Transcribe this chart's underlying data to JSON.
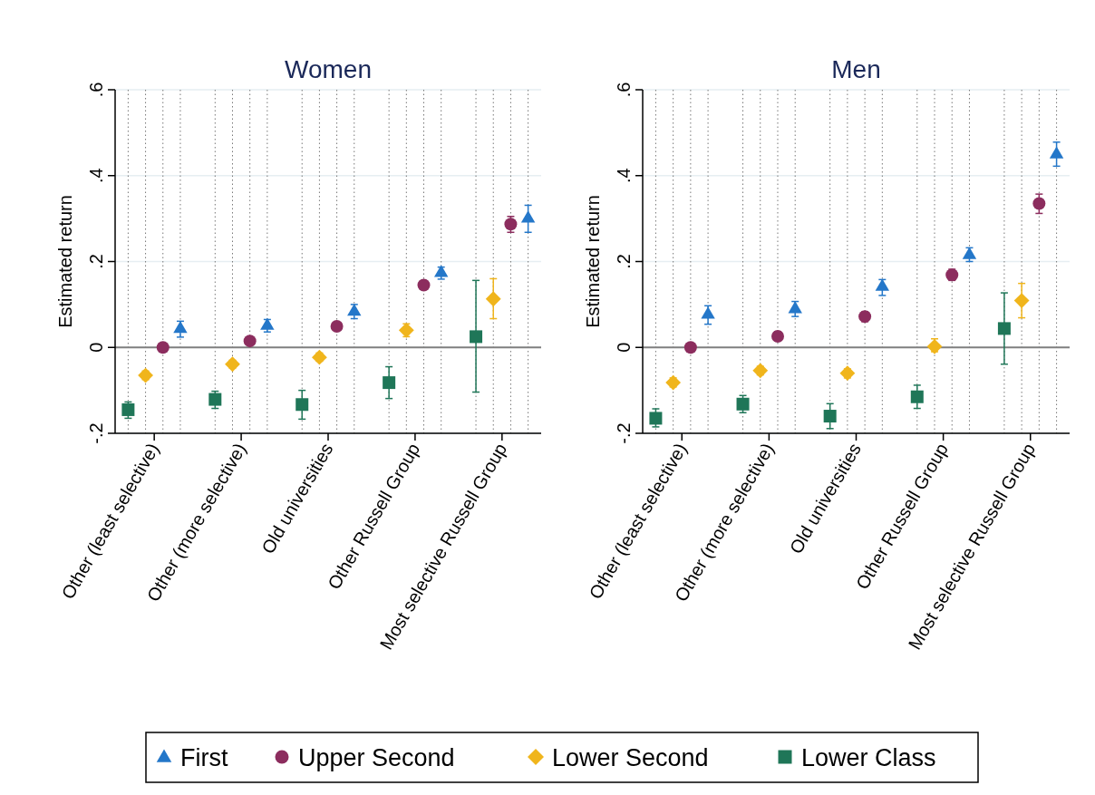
{
  "chart_data": [
    {
      "type": "scatter",
      "title": "Women",
      "ylabel": "Estimated return",
      "categories": [
        "Other (least selective)",
        "Other (more selective)",
        "Old universities",
        "Other Russell Group",
        "Most selective Russell Group"
      ],
      "ylim": [
        -0.2,
        0.6
      ],
      "yticks": [
        {
          "value": -0.2,
          "label": "-.2"
        },
        {
          "value": 0,
          "label": "0"
        },
        {
          "value": 0.2,
          "label": ".2"
        },
        {
          "value": 0.4,
          "label": ".4"
        },
        {
          "value": 0.6,
          "label": ".6"
        }
      ],
      "grid": true,
      "legend": "bottom",
      "ref_lines": [
        {
          "axis": "y",
          "value": 0,
          "color": "#808080"
        }
      ],
      "series": [
        {
          "name": "First",
          "color": "#2477c9",
          "marker": "triangle",
          "values": [
            0.045,
            0.052,
            0.085,
            0.175,
            0.302
          ],
          "errors": [
            [
              0.024,
              0.061
            ],
            [
              0.036,
              0.065
            ],
            [
              0.067,
              0.1
            ],
            [
              0.159,
              0.187
            ],
            [
              0.268,
              0.331
            ]
          ]
        },
        {
          "name": "Upper Second",
          "color": "#8c2d5e",
          "marker": "circle",
          "values": [
            0,
            0.015,
            0.049,
            0.145,
            0.287
          ],
          "errors": [
            null,
            null,
            null,
            null,
            [
              0.268,
              0.305
            ]
          ]
        },
        {
          "name": "Lower Second",
          "color": "#f0b51c",
          "marker": "diamond",
          "values": [
            -0.065,
            -0.039,
            -0.023,
            0.04,
            0.113
          ],
          "errors": [
            [
              -0.075,
              -0.055
            ],
            [
              -0.048,
              -0.03
            ],
            [
              -0.032,
              -0.013
            ],
            [
              0.025,
              0.055
            ],
            [
              0.067,
              0.16
            ]
          ]
        },
        {
          "name": "Lower Class",
          "color": "#1f7658",
          "marker": "square",
          "values": [
            -0.145,
            -0.121,
            -0.133,
            -0.082,
            0.025
          ],
          "errors": [
            [
              -0.165,
              -0.127
            ],
            [
              -0.142,
              -0.102
            ],
            [
              -0.167,
              -0.1
            ],
            [
              -0.119,
              -0.045
            ],
            [
              -0.104,
              0.156
            ]
          ]
        }
      ]
    },
    {
      "type": "scatter",
      "title": "Men",
      "ylabel": "Estimated return",
      "categories": [
        "Other (least selective)",
        "Other (more selective)",
        "Old universities",
        "Other Russell Group",
        "Most selective Russell Group"
      ],
      "ylim": [
        -0.2,
        0.6
      ],
      "yticks": [
        {
          "value": -0.2,
          "label": "-.2"
        },
        {
          "value": 0,
          "label": "0"
        },
        {
          "value": 0.2,
          "label": ".2"
        },
        {
          "value": 0.4,
          "label": ".4"
        },
        {
          "value": 0.6,
          "label": ".6"
        }
      ],
      "grid": true,
      "ref_lines": [
        {
          "axis": "y",
          "value": 0,
          "color": "#808080"
        }
      ],
      "series": [
        {
          "name": "First",
          "color": "#2477c9",
          "marker": "triangle",
          "values": [
            0.078,
            0.091,
            0.143,
            0.217,
            0.451
          ],
          "errors": [
            [
              0.054,
              0.097
            ],
            [
              0.072,
              0.107
            ],
            [
              0.121,
              0.158
            ],
            [
              0.2,
              0.232
            ],
            [
              0.422,
              0.478
            ]
          ]
        },
        {
          "name": "Upper Second",
          "color": "#8c2d5e",
          "marker": "circle",
          "values": [
            0,
            0.026,
            0.072,
            0.169,
            0.335
          ],
          "errors": [
            null,
            [
              0.016,
              0.037
            ],
            [
              0.06,
              0.083
            ],
            [
              0.156,
              0.182
            ],
            [
              0.312,
              0.357
            ]
          ]
        },
        {
          "name": "Lower Second",
          "color": "#f0b51c",
          "marker": "diamond",
          "values": [
            -0.082,
            -0.054,
            -0.06,
            0.002,
            0.109
          ],
          "errors": [
            [
              -0.092,
              -0.071
            ],
            [
              -0.064,
              -0.044
            ],
            [
              -0.071,
              -0.05
            ],
            [
              -0.01,
              0.02
            ],
            [
              0.069,
              0.149
            ]
          ]
        },
        {
          "name": "Lower Class",
          "color": "#1f7658",
          "marker": "square",
          "values": [
            -0.165,
            -0.132,
            -0.16,
            -0.115,
            0.044
          ],
          "errors": [
            [
              -0.185,
              -0.143
            ],
            [
              -0.152,
              -0.112
            ],
            [
              -0.189,
              -0.131
            ],
            [
              -0.142,
              -0.088
            ],
            [
              -0.039,
              0.127
            ]
          ]
        }
      ]
    }
  ]
}
